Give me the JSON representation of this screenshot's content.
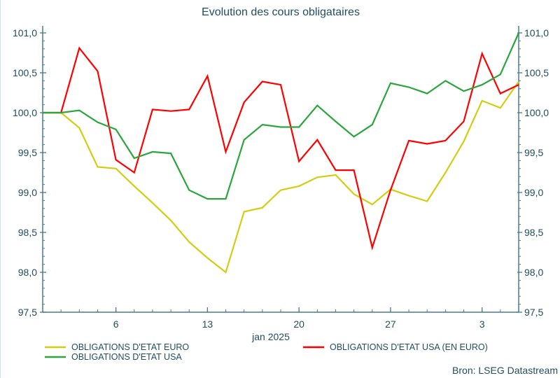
{
  "chart_data": {
    "type": "line",
    "title": "Evolution des cours obligataires",
    "xlabel": "jan 2025",
    "source": "Bron: LSEG Datastream",
    "ylim": [
      97.5,
      101.0
    ],
    "yticks": [
      "97,5",
      "98,0",
      "98,5",
      "99,0",
      "99,5",
      "100,0",
      "100,5",
      "101,0"
    ],
    "ytick_values": [
      97.5,
      98.0,
      98.5,
      99.0,
      99.5,
      100.0,
      100.5,
      101.0
    ],
    "xtick_labels": [
      "6",
      "13",
      "20",
      "27",
      "3"
    ],
    "xtick_dates": [
      "2025-01-06",
      "2025-01-13",
      "2025-01-20",
      "2025-01-27",
      "2025-02-03"
    ],
    "grid": false,
    "legend_placement": "bottom",
    "x": [
      "2024-12-31",
      "2025-01-01",
      "2025-01-02",
      "2025-01-03",
      "2025-01-06",
      "2025-01-07",
      "2025-01-08",
      "2025-01-09",
      "2025-01-10",
      "2025-01-13",
      "2025-01-14",
      "2025-01-15",
      "2025-01-16",
      "2025-01-17",
      "2025-01-20",
      "2025-01-21",
      "2025-01-22",
      "2025-01-23",
      "2025-01-24",
      "2025-01-27",
      "2025-01-28",
      "2025-01-29",
      "2025-01-30",
      "2025-01-31",
      "2025-02-03",
      "2025-02-04",
      "2025-02-05"
    ],
    "series": [
      {
        "name": "OBLIGATIONS D'ETAT EURO",
        "color": "#d4cc10",
        "values": [
          100.0,
          100.0,
          99.81,
          99.32,
          99.3,
          99.08,
          98.87,
          98.65,
          98.38,
          98.18,
          98.0,
          98.76,
          98.81,
          99.03,
          99.08,
          99.19,
          99.22,
          98.98,
          98.85,
          99.04,
          98.96,
          98.89,
          99.25,
          99.64,
          100.15,
          100.06,
          100.39
        ]
      },
      {
        "name": "OBLIGATIONS D'ETAT USA (EN EURO)",
        "color": "#ff0000",
        "values": [
          100.0,
          100.0,
          100.81,
          100.52,
          99.41,
          99.25,
          100.04,
          100.02,
          100.04,
          100.46,
          99.51,
          100.13,
          100.39,
          100.35,
          99.39,
          99.66,
          99.28,
          99.28,
          98.31,
          99.03,
          99.65,
          99.61,
          99.65,
          99.89,
          100.74,
          100.24,
          100.35
        ]
      },
      {
        "name": "OBLIGATIONS D'ETAT USA",
        "color": "#2aa63c",
        "values": [
          100.0,
          100.0,
          100.03,
          99.88,
          99.79,
          99.43,
          99.51,
          99.49,
          99.03,
          98.92,
          98.92,
          99.66,
          99.85,
          99.82,
          99.82,
          100.09,
          99.89,
          99.7,
          99.85,
          100.37,
          100.32,
          100.24,
          100.4,
          100.27,
          100.35,
          100.48,
          101.0
        ]
      }
    ]
  }
}
